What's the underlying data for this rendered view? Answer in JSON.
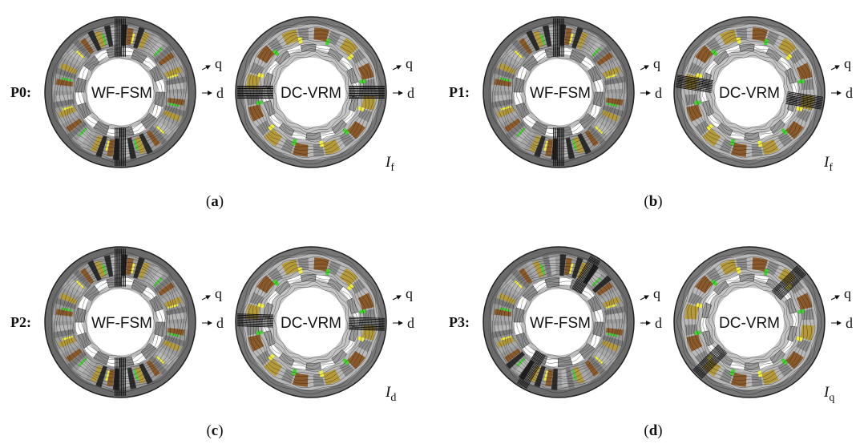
{
  "panels": [
    {
      "id": "a",
      "caption": "(a)",
      "row_label": "P0:",
      "fsm_label": "WF-FSM",
      "vrm_label": "DC-VRM",
      "q_label": "q",
      "d_label": "d",
      "current_symbol": "I",
      "current_subscript": "f"
    },
    {
      "id": "b",
      "caption": "(b)",
      "row_label": "P1:",
      "fsm_label": "WF-FSM",
      "vrm_label": "DC-VRM",
      "q_label": "q",
      "d_label": "d",
      "current_symbol": "I",
      "current_subscript": "f"
    },
    {
      "id": "c",
      "caption": "(c)",
      "row_label": "P2:",
      "fsm_label": "WF-FSM",
      "vrm_label": "DC-VRM",
      "q_label": "q",
      "d_label": "d",
      "current_symbol": "I",
      "current_subscript": "d"
    },
    {
      "id": "d",
      "caption": "(d)",
      "row_label": "P3:",
      "fsm_label": "WF-FSM",
      "vrm_label": "DC-VRM",
      "q_label": "q",
      "d_label": "d",
      "current_symbol": "I",
      "current_subscript": "q"
    }
  ],
  "colors": {
    "stator_dark": "#3a3a3a",
    "stator_mid": "#8a8a8a",
    "stator_light": "#c8c8c8",
    "copper_brown": "#8b5a2b",
    "copper_olive": "#b59a3a",
    "winding_green": "#3fd62a",
    "winding_yellow": "#f2ee3a",
    "flux_line": "#1a1a1a"
  }
}
